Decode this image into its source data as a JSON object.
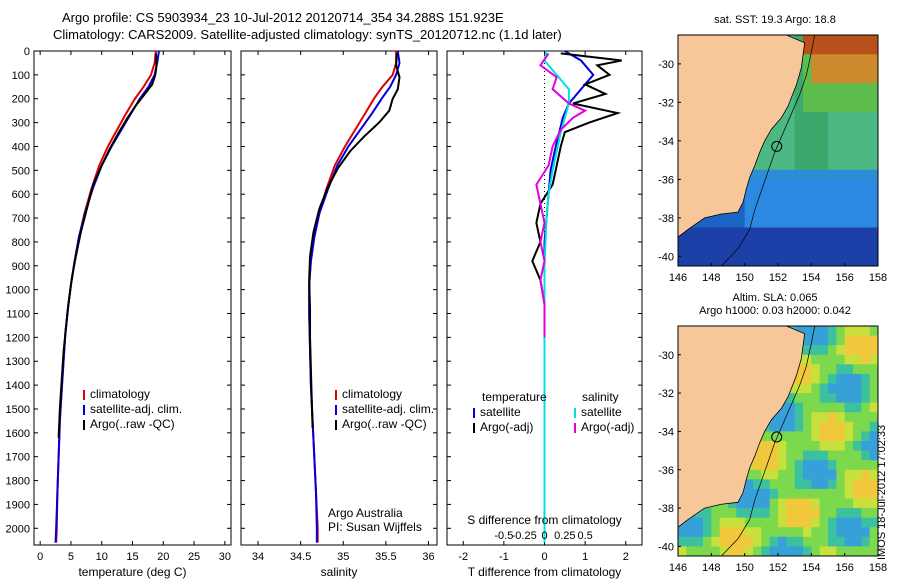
{
  "header": {
    "line1": "Argo profile: CS 5903934_23 10-Jul-2012 20120714_354 34.288S 151.923E",
    "line2": "Climatology: CARS2009. Satellite-adjusted climatology: synTS_20120712.nc (1.1d later)"
  },
  "timestamp": "IMOS 18-Jul-2012 17:02:33",
  "colors": {
    "clim": "#e00000",
    "sat": "#0000dd",
    "argo": "#000000",
    "sat_sal": "#00e0e0",
    "argo_sal": "#e000e0"
  },
  "chart_data": [
    {
      "type": "line",
      "id": "temperature",
      "xlabel": "temperature (deg C)",
      "xlim": [
        -1,
        31
      ],
      "ylim": [
        2070,
        0
      ],
      "xticks": [
        "0",
        "5",
        "10",
        "15",
        "20",
        "25",
        "30"
      ],
      "yticks": [
        "0",
        "100",
        "200",
        "300",
        "400",
        "500",
        "600",
        "700",
        "800",
        "900",
        "1000",
        "1100",
        "1200",
        "1300",
        "1400",
        "1500",
        "1600",
        "1700",
        "1800",
        "1900",
        "2000"
      ],
      "legend": [
        "climatology",
        "satellite-adj. clim.",
        "Argo(..raw -QC)"
      ],
      "series": [
        {
          "name": "climatology",
          "color": "clim",
          "points": [
            [
              18.8,
              0
            ],
            [
              18.6,
              50
            ],
            [
              18.0,
              100
            ],
            [
              16.8,
              150
            ],
            [
              15.4,
              200
            ],
            [
              14.0,
              260
            ],
            [
              12.5,
              330
            ],
            [
              11.0,
              400
            ],
            [
              9.6,
              480
            ],
            [
              8.3,
              580
            ],
            [
              7.2,
              680
            ],
            [
              6.3,
              780
            ],
            [
              5.6,
              880
            ],
            [
              5.0,
              980
            ],
            [
              4.5,
              1080
            ],
            [
              4.1,
              1180
            ],
            [
              3.8,
              1300
            ],
            [
              3.5,
              1420
            ],
            [
              3.2,
              1550
            ],
            [
              3.0,
              1700
            ],
            [
              2.8,
              1850
            ],
            [
              2.7,
              2000
            ],
            [
              2.6,
              2060
            ]
          ]
        },
        {
          "name": "satellite-adj. clim.",
          "color": "sat",
          "points": [
            [
              19.3,
              0
            ],
            [
              19.0,
              50
            ],
            [
              18.6,
              100
            ],
            [
              17.6,
              150
            ],
            [
              16.2,
              200
            ],
            [
              14.8,
              260
            ],
            [
              13.2,
              330
            ],
            [
              11.6,
              400
            ],
            [
              10.0,
              480
            ],
            [
              8.5,
              580
            ],
            [
              7.3,
              680
            ],
            [
              6.3,
              780
            ],
            [
              5.6,
              880
            ],
            [
              5.0,
              980
            ],
            [
              4.5,
              1080
            ],
            [
              4.1,
              1180
            ],
            [
              3.8,
              1300
            ],
            [
              3.5,
              1420
            ],
            [
              3.2,
              1550
            ],
            [
              3.0,
              1700
            ],
            [
              2.8,
              1850
            ],
            [
              2.6,
              2000
            ],
            [
              2.5,
              2060
            ]
          ]
        },
        {
          "name": "Argo(..raw -QC)",
          "color": "argo",
          "points": [
            [
              18.8,
              10
            ],
            [
              18.9,
              60
            ],
            [
              18.7,
              100
            ],
            [
              18.2,
              140
            ],
            [
              17.0,
              180
            ],
            [
              15.5,
              230
            ],
            [
              14.2,
              280
            ],
            [
              12.8,
              340
            ],
            [
              11.3,
              410
            ],
            [
              10.0,
              480
            ],
            [
              8.6,
              560
            ],
            [
              7.6,
              660
            ],
            [
              6.6,
              760
            ],
            [
              5.8,
              860
            ],
            [
              5.1,
              960
            ],
            [
              4.6,
              1060
            ],
            [
              4.2,
              1160
            ],
            [
              3.8,
              1260
            ],
            [
              3.5,
              1380
            ],
            [
              3.2,
              1500
            ],
            [
              3.0,
              1620
            ]
          ]
        }
      ]
    },
    {
      "type": "line",
      "id": "salinity",
      "xlabel": "salinity",
      "xlim": [
        33.8,
        36.1
      ],
      "ylim": [
        2070,
        0
      ],
      "xticks": [
        "34",
        "34.5",
        "35",
        "35.5",
        "36"
      ],
      "legend": [
        "climatology",
        "satellite-adj. clim.",
        "Argo(..raw -QC)"
      ],
      "annotation": [
        "Argo Australia",
        "PI: Susan Wijffels"
      ],
      "series": [
        {
          "name": "climatology",
          "color": "clim",
          "points": [
            [
              35.62,
              0
            ],
            [
              35.62,
              50
            ],
            [
              35.58,
              100
            ],
            [
              35.46,
              150
            ],
            [
              35.36,
              200
            ],
            [
              35.26,
              260
            ],
            [
              35.14,
              330
            ],
            [
              35.02,
              400
            ],
            [
              34.9,
              480
            ],
            [
              34.8,
              580
            ],
            [
              34.72,
              680
            ],
            [
              34.66,
              780
            ],
            [
              34.62,
              880
            ],
            [
              34.6,
              980
            ],
            [
              34.6,
              1100
            ],
            [
              34.61,
              1250
            ],
            [
              34.62,
              1400
            ],
            [
              34.64,
              1550
            ],
            [
              34.66,
              1700
            ],
            [
              34.68,
              1850
            ],
            [
              34.7,
              2000
            ],
            [
              34.7,
              2060
            ]
          ]
        },
        {
          "name": "satellite-adj. clim.",
          "color": "sat",
          "points": [
            [
              35.64,
              0
            ],
            [
              35.66,
              50
            ],
            [
              35.62,
              100
            ],
            [
              35.55,
              150
            ],
            [
              35.45,
              200
            ],
            [
              35.34,
              260
            ],
            [
              35.2,
              330
            ],
            [
              35.06,
              400
            ],
            [
              34.93,
              480
            ],
            [
              34.82,
              580
            ],
            [
              34.72,
              680
            ],
            [
              34.66,
              780
            ],
            [
              34.62,
              880
            ],
            [
              34.6,
              980
            ],
            [
              34.6,
              1100
            ],
            [
              34.61,
              1250
            ],
            [
              34.62,
              1400
            ],
            [
              34.64,
              1550
            ],
            [
              34.66,
              1700
            ],
            [
              34.68,
              1850
            ],
            [
              34.69,
              2000
            ],
            [
              34.69,
              2060
            ]
          ]
        },
        {
          "name": "Argo(..raw -QC)",
          "color": "argo",
          "points": [
            [
              35.63,
              10
            ],
            [
              35.62,
              60
            ],
            [
              35.66,
              110
            ],
            [
              35.64,
              160
            ],
            [
              35.58,
              200
            ],
            [
              35.54,
              250
            ],
            [
              35.42,
              300
            ],
            [
              35.24,
              360
            ],
            [
              35.08,
              420
            ],
            [
              34.94,
              490
            ],
            [
              34.82,
              570
            ],
            [
              34.72,
              660
            ],
            [
              34.65,
              760
            ],
            [
              34.61,
              860
            ],
            [
              34.6,
              960
            ],
            [
              34.61,
              1080
            ],
            [
              34.61,
              1200
            ],
            [
              34.62,
              1330
            ],
            [
              34.63,
              1460
            ],
            [
              34.64,
              1580
            ]
          ]
        }
      ]
    },
    {
      "type": "line",
      "id": "difference",
      "xlabel": "T difference from climatology",
      "xlabel2": "S difference from climatology",
      "xlim": [
        -2.4,
        2.4
      ],
      "ylim": [
        2070,
        0
      ],
      "xticks": [
        "-2",
        "-1",
        "0",
        "1",
        "2"
      ],
      "xticks2": [
        "-0.5",
        "-0.25",
        "0",
        "0.25",
        "0.5"
      ],
      "legend_titles": [
        "temperature",
        "salinity"
      ],
      "legend": [
        "satellite",
        "Argo(-adj)",
        "satellite",
        "Argo(-adj)"
      ],
      "series": [
        {
          "name": "satellite",
          "color": "sat",
          "points": [
            [
              0.5,
              0
            ],
            [
              0.9,
              40
            ],
            [
              1.2,
              100
            ],
            [
              0.9,
              160
            ],
            [
              0.6,
              220
            ],
            [
              0.45,
              280
            ],
            [
              0.35,
              350
            ],
            [
              0.25,
              420
            ],
            [
              0.15,
              500
            ],
            [
              0.1,
              600
            ],
            [
              0.05,
              700
            ],
            [
              0.0,
              800
            ],
            [
              0.0,
              1000
            ],
            [
              0.0,
              1300
            ],
            [
              0.0,
              1600
            ],
            [
              0.0,
              1900
            ],
            [
              0.0,
              2060
            ]
          ]
        },
        {
          "name": "Argo(-adj)",
          "color": "argo",
          "points": [
            [
              0.4,
              10
            ],
            [
              0.9,
              20
            ],
            [
              1.9,
              40
            ],
            [
              1.3,
              60
            ],
            [
              1.6,
              100
            ],
            [
              1.0,
              140
            ],
            [
              1.5,
              180
            ],
            [
              0.7,
              220
            ],
            [
              1.8,
              260
            ],
            [
              1.1,
              300
            ],
            [
              0.5,
              340
            ],
            [
              0.4,
              400
            ],
            [
              0.3,
              480
            ],
            [
              0.2,
              560
            ],
            [
              -0.1,
              640
            ],
            [
              -0.2,
              720
            ],
            [
              -0.1,
              800
            ],
            [
              -0.3,
              880
            ],
            [
              -0.1,
              960
            ],
            [
              0.0,
              1060
            ],
            [
              0.0,
              1200
            ],
            [
              0.0,
              1300
            ]
          ]
        },
        {
          "name": "satellite",
          "color": "sat_sal",
          "points": [
            [
              0.05,
              0
            ],
            [
              0.0,
              40
            ],
            [
              0.3,
              100
            ],
            [
              0.6,
              160
            ],
            [
              0.6,
              220
            ],
            [
              0.5,
              280
            ],
            [
              0.4,
              340
            ],
            [
              0.3,
              420
            ],
            [
              0.2,
              500
            ],
            [
              0.1,
              600
            ],
            [
              0.05,
              700
            ],
            [
              0.0,
              900
            ],
            [
              0.0,
              1200
            ],
            [
              0.0,
              1500
            ],
            [
              0.0,
              1800
            ],
            [
              0.0,
              2060
            ]
          ]
        },
        {
          "name": "Argo(-adj)",
          "color": "argo_sal",
          "points": [
            [
              0.1,
              10
            ],
            [
              -0.1,
              60
            ],
            [
              0.3,
              110
            ],
            [
              0.2,
              160
            ],
            [
              0.6,
              220
            ],
            [
              1.0,
              250
            ],
            [
              0.7,
              280
            ],
            [
              0.4,
              330
            ],
            [
              0.2,
              400
            ],
            [
              0.1,
              480
            ],
            [
              -0.2,
              560
            ],
            [
              -0.1,
              640
            ],
            [
              0.0,
              720
            ],
            [
              -0.1,
              800
            ],
            [
              0.0,
              880
            ],
            [
              -0.1,
              960
            ],
            [
              0.0,
              1060
            ],
            [
              0.0,
              1200
            ]
          ]
        }
      ]
    },
    {
      "type": "heatmap",
      "id": "sst-map",
      "title": "sat. SST: 19.3  Argo: 18.8",
      "xlim": [
        146,
        158
      ],
      "ylim": [
        -40.5,
        -28.5
      ],
      "xticks": [
        "146",
        "148",
        "150",
        "152",
        "154",
        "156",
        "158"
      ],
      "yticks": [
        "-30",
        "-32",
        "-34",
        "-36",
        "-38",
        "-40"
      ],
      "float_position": [
        151.923,
        -34.288
      ]
    },
    {
      "type": "heatmap",
      "id": "sla-map",
      "title": "Altim. SLA: 0.065",
      "subtitle": "Argo h1000: 0.03  h2000: 0.042",
      "xlim": [
        146,
        158
      ],
      "ylim": [
        -40.5,
        -28.5
      ],
      "xticks": [
        "146",
        "148",
        "150",
        "152",
        "154",
        "156",
        "158"
      ],
      "yticks": [
        "-30",
        "-32",
        "-34",
        "-36",
        "-38",
        "-40"
      ],
      "float_position": [
        151.923,
        -34.288
      ]
    }
  ]
}
